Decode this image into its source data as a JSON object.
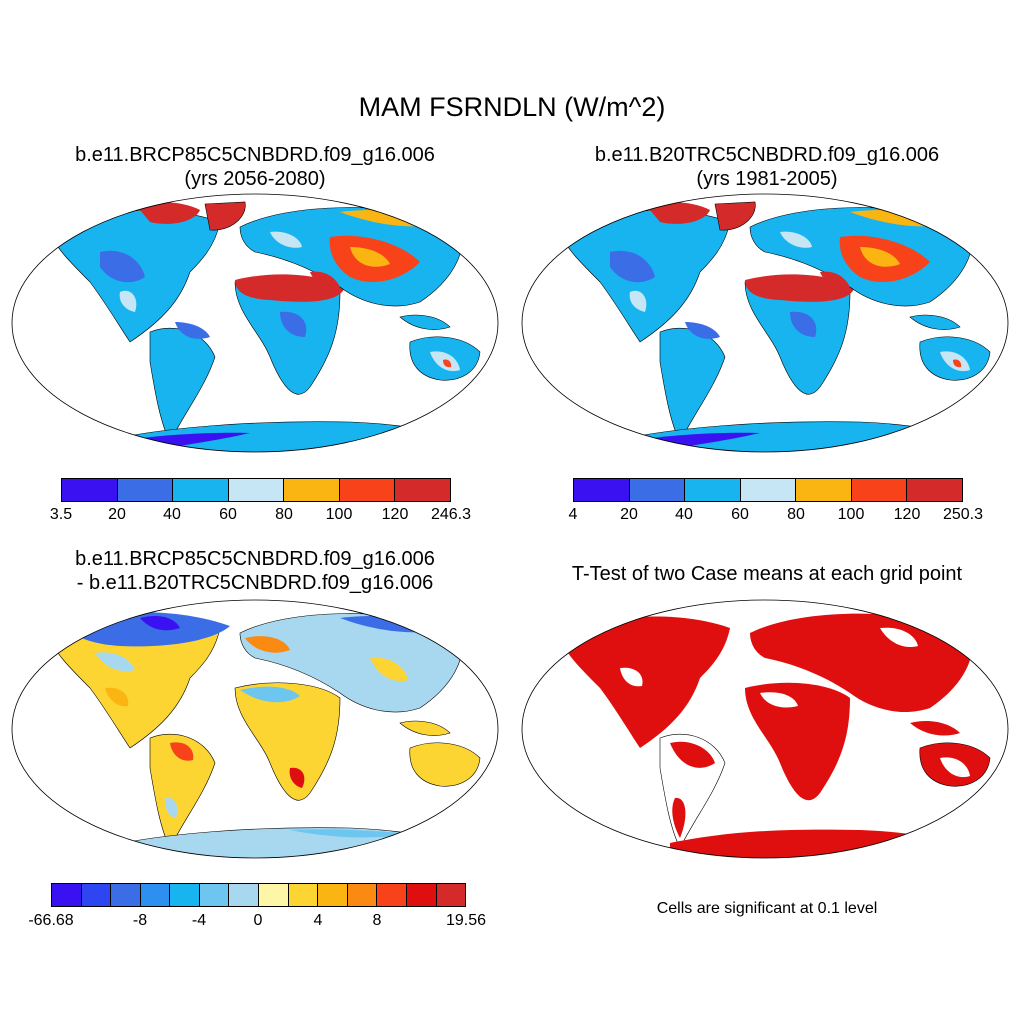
{
  "title": "MAM FSRNDLN (W/m^2)",
  "panels": [
    {
      "id": "case1",
      "title_line1": "b.e11.BRCP85C5CNBDRD.f09_g16.006",
      "title_line2": "(yrs 2056-2080)",
      "legend": {
        "colors": [
          "#3a12f2",
          "#3b6ee6",
          "#17b4f0",
          "#c6e6f6",
          "#fbb512",
          "#f8421a",
          "#d42a2a"
        ],
        "labels": [
          "3.5",
          "20",
          "40",
          "60",
          "80",
          "100",
          "120",
          "246.3"
        ]
      }
    },
    {
      "id": "case2",
      "title_line1": "b.e11.B20TRC5CNBDRD.f09_g16.006",
      "title_line2": "(yrs 1981-2005)",
      "legend": {
        "colors": [
          "#3a12f2",
          "#3b6ee6",
          "#17b4f0",
          "#c6e6f6",
          "#fbb512",
          "#f8421a",
          "#d42a2a"
        ],
        "labels": [
          "4",
          "20",
          "40",
          "60",
          "80",
          "100",
          "120",
          "250.3"
        ]
      }
    },
    {
      "id": "diff",
      "title_line1": "b.e11.BRCP85C5CNBDRD.f09_g16.006",
      "title_line2": "- b.e11.B20TRC5CNBDRD.f09_g16.006",
      "legend": {
        "colors": [
          "#3a12f2",
          "#2e46f2",
          "#3b6ee6",
          "#2d8ff0",
          "#17b4f0",
          "#6cc6ef",
          "#a8d8f0",
          "#fdf6a6",
          "#fdd532",
          "#fbb512",
          "#fa8a12",
          "#f8421a",
          "#e00f0f",
          "#d42a2a"
        ],
        "labels": [
          "-66.68",
          "-8",
          "-4",
          "0",
          "4",
          "8",
          "19.56"
        ]
      }
    },
    {
      "id": "ttest",
      "title_line1": "T-Test of two Case means at each grid point",
      "note": "Cells are significant at 0.1 level"
    }
  ]
}
